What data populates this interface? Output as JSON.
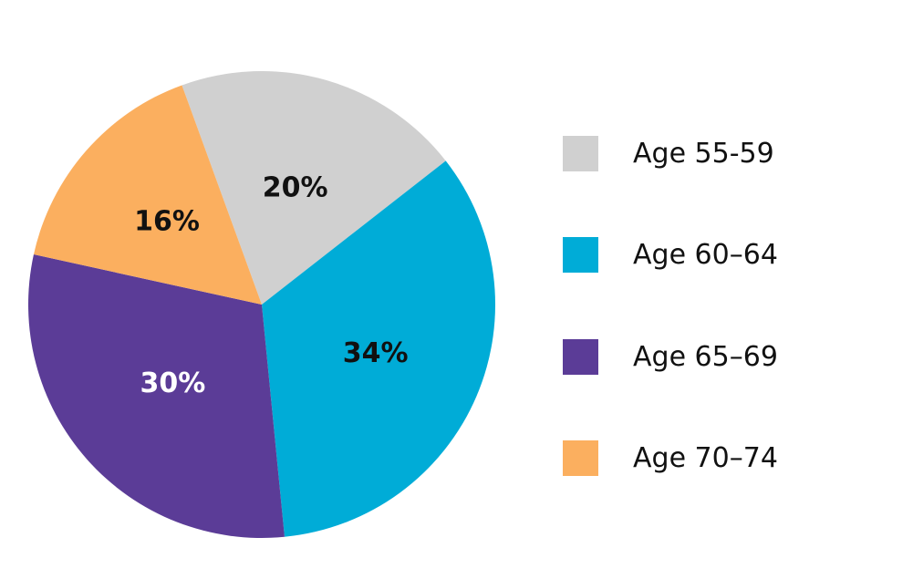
{
  "chart_data": {
    "type": "pie",
    "title": "",
    "categories": [
      "Age 55-59",
      "Age 60–64",
      "Age 65–69",
      "Age 70–74"
    ],
    "values": [
      20,
      34,
      30,
      16
    ],
    "data_labels": [
      "20%",
      "34%",
      "30%",
      "16%"
    ],
    "colors": [
      "#d0d0d0",
      "#00acd7",
      "#5b3c97",
      "#fbaf5f"
    ],
    "label_colors": [
      "#111111",
      "#111111",
      "#ffffff",
      "#111111"
    ],
    "legend_position": "right",
    "legend": [
      "Age 55-59",
      "Age 60–64",
      "Age 65–69",
      "Age 70–74"
    ]
  }
}
